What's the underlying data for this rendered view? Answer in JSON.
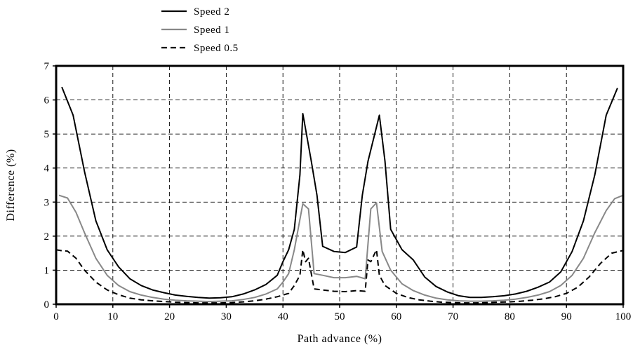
{
  "chart_data": {
    "type": "line",
    "title": "",
    "xlabel": "Path advance (%)",
    "ylabel": "Difference (%)",
    "xlim": [
      0,
      100
    ],
    "ylim": [
      0,
      7
    ],
    "xticks": [
      0,
      10,
      20,
      30,
      40,
      50,
      60,
      70,
      80,
      90,
      100
    ],
    "yticks": [
      0,
      1,
      2,
      3,
      4,
      5,
      6,
      7
    ],
    "grid": true,
    "legend_position": "top-left, above plot",
    "series": [
      {
        "name": "Speed 2",
        "color": "#000000",
        "dash": "solid",
        "points": [
          [
            1,
            6.38
          ],
          [
            3,
            5.55
          ],
          [
            5,
            3.9
          ],
          [
            7,
            2.45
          ],
          [
            9,
            1.6
          ],
          [
            11,
            1.1
          ],
          [
            13,
            0.75
          ],
          [
            15,
            0.55
          ],
          [
            17,
            0.42
          ],
          [
            19,
            0.34
          ],
          [
            21,
            0.27
          ],
          [
            23,
            0.23
          ],
          [
            25,
            0.2
          ],
          [
            27,
            0.18
          ],
          [
            29,
            0.19
          ],
          [
            31,
            0.22
          ],
          [
            33,
            0.3
          ],
          [
            35,
            0.42
          ],
          [
            37,
            0.58
          ],
          [
            39,
            0.85
          ],
          [
            40,
            1.25
          ],
          [
            41,
            1.6
          ],
          [
            42,
            2.2
          ],
          [
            43,
            3.8
          ],
          [
            43.5,
            5.6
          ],
          [
            45,
            4.2
          ],
          [
            46,
            3.2
          ],
          [
            47,
            1.7
          ],
          [
            49,
            1.55
          ],
          [
            51,
            1.52
          ],
          [
            53,
            1.68
          ],
          [
            54,
            3.2
          ],
          [
            55,
            4.2
          ],
          [
            57,
            5.55
          ],
          [
            58,
            4.2
          ],
          [
            59,
            2.2
          ],
          [
            61,
            1.6
          ],
          [
            63,
            1.3
          ],
          [
            65,
            0.8
          ],
          [
            67,
            0.52
          ],
          [
            69,
            0.36
          ],
          [
            71,
            0.25
          ],
          [
            73,
            0.2
          ],
          [
            75,
            0.2
          ],
          [
            77,
            0.22
          ],
          [
            79,
            0.25
          ],
          [
            81,
            0.3
          ],
          [
            83,
            0.38
          ],
          [
            85,
            0.5
          ],
          [
            87,
            0.65
          ],
          [
            89,
            0.95
          ],
          [
            91,
            1.55
          ],
          [
            93,
            2.45
          ],
          [
            95,
            3.8
          ],
          [
            97,
            5.55
          ],
          [
            99,
            6.35
          ]
        ]
      },
      {
        "name": "Speed 1",
        "color": "#888888",
        "dash": "solid",
        "points": [
          [
            0.5,
            3.2
          ],
          [
            2,
            3.12
          ],
          [
            3.5,
            2.7
          ],
          [
            5,
            2.1
          ],
          [
            7,
            1.35
          ],
          [
            9,
            0.85
          ],
          [
            11,
            0.55
          ],
          [
            13,
            0.37
          ],
          [
            15,
            0.27
          ],
          [
            17,
            0.2
          ],
          [
            19,
            0.15
          ],
          [
            21,
            0.12
          ],
          [
            23,
            0.1
          ],
          [
            25,
            0.09
          ],
          [
            27,
            0.08
          ],
          [
            29,
            0.09
          ],
          [
            31,
            0.1
          ],
          [
            33,
            0.14
          ],
          [
            35,
            0.2
          ],
          [
            37,
            0.3
          ],
          [
            39,
            0.45
          ],
          [
            40,
            0.65
          ],
          [
            41,
            0.9
          ],
          [
            42,
            1.6
          ],
          [
            43.5,
            2.95
          ],
          [
            44.5,
            2.8
          ],
          [
            45.5,
            0.9
          ],
          [
            47,
            0.85
          ],
          [
            49,
            0.78
          ],
          [
            51,
            0.78
          ],
          [
            53,
            0.82
          ],
          [
            54.5,
            0.75
          ],
          [
            55.5,
            2.8
          ],
          [
            56.5,
            2.98
          ],
          [
            57.5,
            1.55
          ],
          [
            59,
            1.0
          ],
          [
            61,
            0.6
          ],
          [
            63,
            0.4
          ],
          [
            65,
            0.27
          ],
          [
            67,
            0.18
          ],
          [
            69,
            0.13
          ],
          [
            71,
            0.1
          ],
          [
            73,
            0.09
          ],
          [
            75,
            0.09
          ],
          [
            77,
            0.1
          ],
          [
            79,
            0.12
          ],
          [
            81,
            0.15
          ],
          [
            83,
            0.2
          ],
          [
            85,
            0.27
          ],
          [
            87,
            0.37
          ],
          [
            89,
            0.55
          ],
          [
            91,
            0.85
          ],
          [
            93,
            1.35
          ],
          [
            95,
            2.1
          ],
          [
            97,
            2.75
          ],
          [
            98.5,
            3.1
          ],
          [
            100,
            3.2
          ]
        ]
      },
      {
        "name": "Speed 0.5",
        "color": "#000000",
        "dash": "dashed",
        "points": [
          [
            0,
            1.6
          ],
          [
            1,
            1.57
          ],
          [
            2,
            1.56
          ],
          [
            3.5,
            1.35
          ],
          [
            5,
            1.0
          ],
          [
            7,
            0.65
          ],
          [
            9,
            0.42
          ],
          [
            11,
            0.28
          ],
          [
            13,
            0.18
          ],
          [
            15,
            0.13
          ],
          [
            17,
            0.1
          ],
          [
            19,
            0.08
          ],
          [
            21,
            0.06
          ],
          [
            23,
            0.05
          ],
          [
            25,
            0.04
          ],
          [
            27,
            0.04
          ],
          [
            29,
            0.04
          ],
          [
            31,
            0.05
          ],
          [
            33,
            0.07
          ],
          [
            35,
            0.1
          ],
          [
            37,
            0.15
          ],
          [
            39,
            0.22
          ],
          [
            41,
            0.32
          ],
          [
            42,
            0.55
          ],
          [
            43,
            0.85
          ],
          [
            43.5,
            1.6
          ],
          [
            44,
            1.25
          ],
          [
            44.5,
            1.35
          ],
          [
            45.5,
            0.45
          ],
          [
            47,
            0.42
          ],
          [
            49,
            0.38
          ],
          [
            51,
            0.37
          ],
          [
            53,
            0.4
          ],
          [
            54.5,
            0.38
          ],
          [
            55,
            1.3
          ],
          [
            55.5,
            1.25
          ],
          [
            56.5,
            1.6
          ],
          [
            57,
            0.85
          ],
          [
            58,
            0.55
          ],
          [
            60,
            0.32
          ],
          [
            62,
            0.2
          ],
          [
            64,
            0.13
          ],
          [
            66,
            0.09
          ],
          [
            68,
            0.06
          ],
          [
            70,
            0.05
          ],
          [
            72,
            0.04
          ],
          [
            74,
            0.04
          ],
          [
            76,
            0.05
          ],
          [
            78,
            0.06
          ],
          [
            80,
            0.07
          ],
          [
            82,
            0.09
          ],
          [
            84,
            0.12
          ],
          [
            86,
            0.16
          ],
          [
            88,
            0.22
          ],
          [
            90,
            0.32
          ],
          [
            92,
            0.5
          ],
          [
            94,
            0.8
          ],
          [
            96,
            1.2
          ],
          [
            98,
            1.5
          ],
          [
            100,
            1.58
          ]
        ]
      }
    ]
  }
}
